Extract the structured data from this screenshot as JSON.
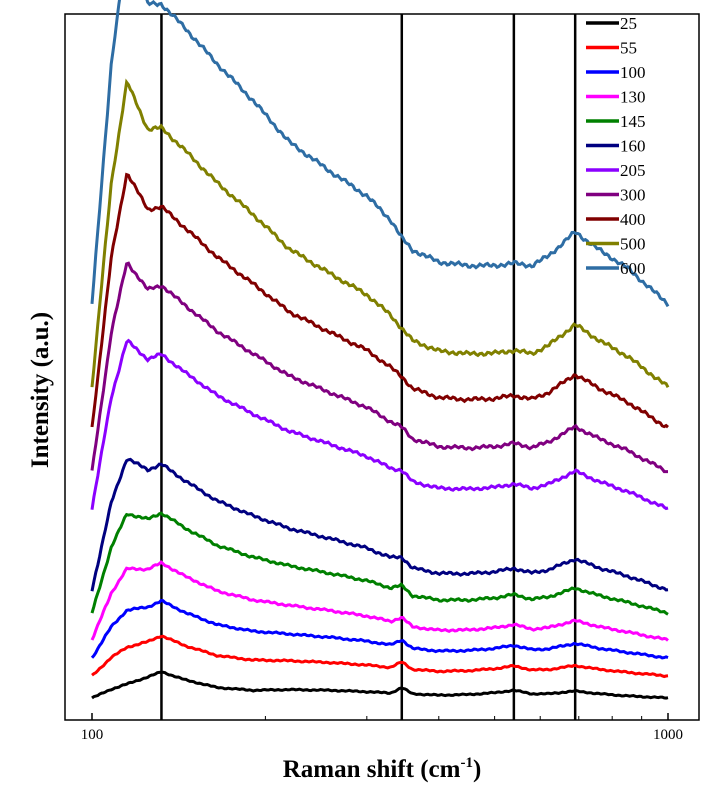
{
  "chart_data": {
    "type": "line",
    "xlabel": "Raman shift (cm",
    "xlabel_superscript": "-1",
    "xlabel_suffix": ")",
    "ylabel": "Intensity (a.u.)",
    "x_scale": "log",
    "xlim": [
      100,
      1000
    ],
    "x_ticks": [
      100,
      1000
    ],
    "x_tick_labels": [
      "100",
      "1000"
    ],
    "y_ticks": "none",
    "grid": false,
    "legend_position": "top-right",
    "reference_lines_x": [
      132,
      345,
      540,
      690
    ],
    "series": [
      {
        "name": "25",
        "color": "#000000",
        "base": 22
      },
      {
        "name": "55",
        "color": "#ff0000",
        "base": 44
      },
      {
        "name": "100",
        "color": "#0000ff",
        "base": 62
      },
      {
        "name": "130",
        "color": "#ff00ff",
        "base": 80
      },
      {
        "name": "145",
        "color": "#008000",
        "base": 107
      },
      {
        "name": "160",
        "color": "#000080",
        "base": 130
      },
      {
        "name": "205",
        "color": "#8b00ff",
        "base": 211
      },
      {
        "name": "300",
        "color": "#800080",
        "base": 248
      },
      {
        "name": "400",
        "color": "#800000",
        "base": 292
      },
      {
        "name": "500",
        "color": "#808000",
        "base": 333
      },
      {
        "name": "600",
        "color": "#2e6da4",
        "base": 416
      }
    ],
    "approximate_profiles": {
      "note_units": "relative intensity above each series baseline (arbitrary units)",
      "x": [
        100,
        108,
        115,
        125,
        132,
        145,
        165,
        190,
        220,
        260,
        300,
        330,
        345,
        360,
        400,
        450,
        500,
        540,
        580,
        620,
        690,
        760,
        850,
        1000
      ],
      "low": [
        0,
        25,
        40,
        60,
        75,
        52,
        30,
        22,
        24,
        22,
        18,
        14,
        30,
        12,
        8,
        10,
        15,
        22,
        12,
        12,
        20,
        12,
        6,
        0
      ],
      "high": [
        0,
        200,
        300,
        250,
        250,
        230,
        200,
        170,
        135,
        110,
        90,
        70,
        55,
        45,
        35,
        32,
        32,
        34,
        32,
        40,
        60,
        45,
        30,
        0
      ]
    }
  }
}
